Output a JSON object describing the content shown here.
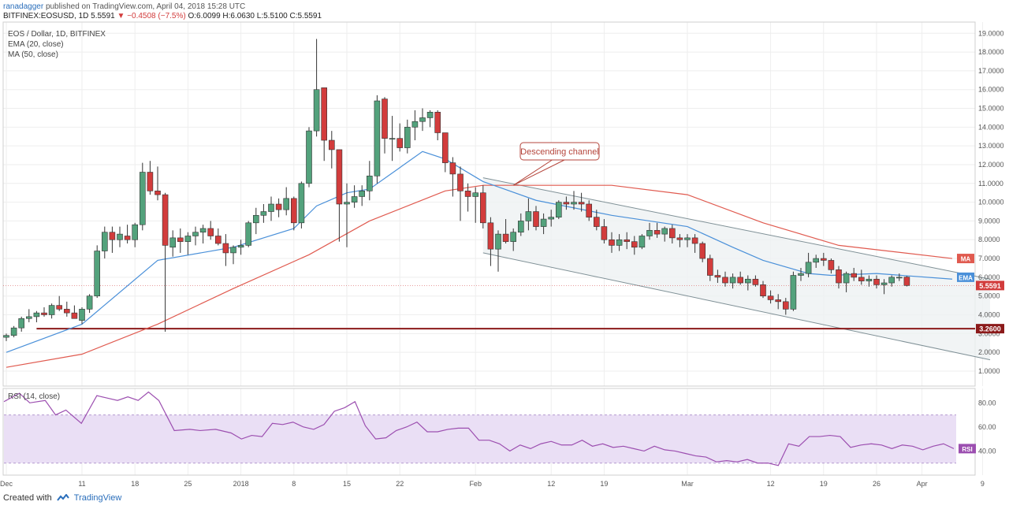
{
  "header": {
    "user": "ranadagger",
    "published_text": "published on TradingView.com, April 04, 2018 15:28 UTC",
    "symbol": "BITFINEX:EOSUSD, 1D",
    "last": "5.5591",
    "change": "▼ −0.4508 (−7.5%)",
    "ohlc": "O:6.0099 H:6.0630 L:5.5100 C:5.5591"
  },
  "legend": {
    "title": "EOS / Dollar, 1D, BITFINEX",
    "ema": "EMA (20, close)",
    "ma": "MA (50, close)"
  },
  "rsi_legend": "RSI (14, close)",
  "annotation": "Descending channel",
  "footer": {
    "created_with": "Created with",
    "brand": "TradingView"
  },
  "colors": {
    "up": "#53a27c",
    "down": "#d23c3c",
    "ema": "#4a90d9",
    "ma": "#e05a4f",
    "support": "#8b1a1a",
    "rsi": "#9c4fb0",
    "rsi_band": "#eadff5"
  },
  "chart_data": {
    "type": "candlestick",
    "price_axis": [
      "19.0000",
      "18.0000",
      "17.0000",
      "16.0000",
      "15.0000",
      "14.0000",
      "13.0000",
      "12.0000",
      "11.0000",
      "10.0000",
      "9.0000",
      "8.0000",
      "7.0000",
      "6.0000",
      "5.0000",
      "4.0000",
      "3.0000",
      "2.0000",
      "1.0000"
    ],
    "price_ticks": [
      19,
      18,
      17,
      16,
      15,
      14,
      13,
      12,
      11,
      10,
      9,
      8,
      7,
      6,
      5,
      4,
      3,
      2,
      1
    ],
    "ylim": [
      0.2,
      19.6
    ],
    "x_labels": [
      {
        "label": "Dec",
        "idx": 0
      },
      {
        "label": "11",
        "idx": 10
      },
      {
        "label": "18",
        "idx": 17
      },
      {
        "label": "25",
        "idx": 24
      },
      {
        "label": "2018",
        "idx": 31
      },
      {
        "label": "8",
        "idx": 38
      },
      {
        "label": "15",
        "idx": 45
      },
      {
        "label": "22",
        "idx": 52
      },
      {
        "label": "Feb",
        "idx": 62
      },
      {
        "label": "12",
        "idx": 72
      },
      {
        "label": "19",
        "idx": 79
      },
      {
        "label": "Mar",
        "idx": 90
      },
      {
        "label": "12",
        "idx": 101
      },
      {
        "label": "19",
        "idx": 108
      },
      {
        "label": "26",
        "idx": 115
      },
      {
        "label": "Apr",
        "idx": 121
      },
      {
        "label": "9",
        "idx": 129
      }
    ],
    "x_count": 136,
    "candles": [
      [
        2.8,
        3.0,
        2.6,
        2.9
      ],
      [
        2.9,
        3.4,
        2.8,
        3.3
      ],
      [
        3.3,
        3.9,
        3.1,
        3.8
      ],
      [
        3.8,
        4.3,
        3.6,
        3.9
      ],
      [
        3.9,
        4.2,
        3.6,
        4.1
      ],
      [
        4.1,
        4.4,
        3.9,
        4.0
      ],
      [
        4.0,
        4.6,
        3.8,
        4.5
      ],
      [
        4.5,
        5.0,
        4.2,
        4.3
      ],
      [
        4.3,
        4.7,
        3.9,
        4.1
      ],
      [
        4.1,
        4.5,
        3.8,
        3.8
      ],
      [
        3.7,
        4.4,
        3.5,
        4.3
      ],
      [
        4.3,
        5.1,
        4.1,
        5.0
      ],
      [
        5.0,
        7.7,
        4.9,
        7.4
      ],
      [
        7.4,
        8.7,
        7.0,
        8.4
      ],
      [
        8.4,
        8.7,
        7.3,
        8.0
      ],
      [
        8.0,
        8.7,
        7.6,
        8.3
      ],
      [
        8.2,
        8.8,
        7.8,
        8.0
      ],
      [
        8.0,
        8.9,
        7.6,
        8.8
      ],
      [
        8.8,
        12.1,
        8.5,
        11.6
      ],
      [
        11.6,
        12.2,
        10.4,
        10.6
      ],
      [
        10.6,
        11.9,
        10.1,
        10.4
      ],
      [
        10.4,
        10.5,
        3.1,
        7.7
      ],
      [
        7.6,
        8.5,
        7.1,
        8.1
      ],
      [
        8.1,
        8.6,
        7.3,
        7.9
      ],
      [
        7.9,
        8.4,
        7.2,
        8.2
      ],
      [
        8.2,
        8.7,
        7.7,
        8.4
      ],
      [
        8.4,
        8.8,
        7.8,
        8.6
      ],
      [
        8.6,
        9.0,
        8.0,
        8.2
      ],
      [
        8.2,
        8.6,
        7.7,
        7.8
      ],
      [
        7.8,
        8.3,
        6.6,
        7.3
      ],
      [
        7.3,
        7.7,
        6.7,
        7.6
      ],
      [
        7.6,
        8.0,
        7.2,
        7.7
      ],
      [
        7.7,
        9.0,
        7.6,
        8.9
      ],
      [
        8.9,
        9.7,
        8.3,
        9.3
      ],
      [
        9.3,
        9.9,
        8.9,
        9.5
      ],
      [
        9.5,
        10.3,
        9.0,
        9.9
      ],
      [
        9.9,
        10.2,
        9.2,
        9.6
      ],
      [
        9.6,
        10.8,
        9.3,
        10.2
      ],
      [
        10.2,
        10.3,
        8.5,
        8.9
      ],
      [
        8.9,
        11.1,
        8.6,
        11.0
      ],
      [
        11.0,
        14.0,
        10.8,
        13.8
      ],
      [
        13.8,
        18.7,
        13.5,
        16.0
      ],
      [
        16.1,
        16.1,
        12.2,
        13.3
      ],
      [
        13.3,
        13.8,
        11.8,
        12.8
      ],
      [
        12.8,
        12.8,
        7.9,
        9.9
      ],
      [
        9.9,
        11.0,
        7.6,
        10.0
      ],
      [
        10.0,
        10.9,
        9.7,
        10.3
      ],
      [
        10.3,
        10.9,
        9.8,
        10.6
      ],
      [
        10.6,
        12.2,
        10.1,
        11.4
      ],
      [
        11.4,
        15.7,
        11.0,
        15.4
      ],
      [
        15.5,
        15.6,
        12.6,
        13.4
      ],
      [
        13.4,
        14.6,
        12.2,
        13.4
      ],
      [
        13.4,
        14.2,
        12.7,
        12.9
      ],
      [
        12.9,
        14.4,
        12.6,
        14.0
      ],
      [
        14.0,
        14.9,
        13.3,
        14.3
      ],
      [
        14.3,
        15.0,
        13.8,
        14.5
      ],
      [
        14.5,
        14.9,
        14.0,
        14.8
      ],
      [
        14.8,
        14.9,
        13.3,
        13.7
      ],
      [
        13.7,
        13.7,
        11.6,
        12.1
      ],
      [
        12.1,
        12.4,
        10.3,
        11.5
      ],
      [
        11.5,
        11.9,
        9.0,
        10.6
      ],
      [
        10.6,
        11.0,
        9.5,
        10.3
      ],
      [
        10.3,
        10.8,
        8.9,
        10.5
      ],
      [
        10.5,
        10.9,
        8.6,
        8.9
      ],
      [
        8.9,
        9.2,
        6.6,
        7.5
      ],
      [
        7.5,
        8.5,
        6.3,
        8.3
      ],
      [
        8.3,
        9.1,
        7.8,
        7.9
      ],
      [
        7.9,
        8.6,
        7.4,
        8.4
      ],
      [
        8.4,
        9.4,
        8.2,
        9.0
      ],
      [
        9.0,
        10.2,
        8.5,
        9.5
      ],
      [
        9.5,
        9.8,
        8.5,
        8.7
      ],
      [
        8.7,
        9.4,
        8.3,
        9.1
      ],
      [
        9.1,
        9.6,
        8.7,
        9.2
      ],
      [
        9.2,
        10.1,
        9.1,
        10.0
      ],
      [
        10.0,
        10.3,
        9.6,
        9.9
      ],
      [
        9.9,
        10.6,
        9.6,
        10.0
      ],
      [
        10.0,
        10.5,
        9.5,
        9.9
      ],
      [
        9.9,
        10.1,
        9.0,
        9.2
      ],
      [
        9.2,
        9.6,
        8.5,
        8.7
      ],
      [
        8.7,
        9.1,
        7.8,
        8.0
      ],
      [
        8.0,
        8.4,
        7.3,
        7.7
      ],
      [
        7.7,
        8.3,
        7.4,
        8.0
      ],
      [
        8.0,
        8.4,
        7.5,
        7.9
      ],
      [
        7.9,
        8.2,
        7.2,
        7.6
      ],
      [
        7.6,
        8.3,
        7.5,
        8.2
      ],
      [
        8.2,
        8.9,
        8.0,
        8.5
      ],
      [
        8.5,
        8.9,
        8.1,
        8.3
      ],
      [
        8.3,
        8.7,
        7.9,
        8.6
      ],
      [
        8.6,
        8.8,
        7.8,
        8.1
      ],
      [
        8.1,
        8.3,
        7.6,
        8.0
      ],
      [
        8.0,
        8.3,
        7.6,
        8.1
      ],
      [
        8.1,
        8.3,
        7.3,
        7.8
      ],
      [
        7.8,
        7.9,
        6.8,
        7.0
      ],
      [
        7.0,
        7.2,
        5.8,
        6.1
      ],
      [
        6.1,
        6.4,
        5.7,
        6.0
      ],
      [
        6.0,
        6.3,
        5.5,
        5.7
      ],
      [
        5.7,
        6.2,
        5.4,
        6.0
      ],
      [
        6.0,
        6.3,
        5.6,
        5.7
      ],
      [
        5.7,
        6.1,
        5.3,
        5.9
      ],
      [
        5.9,
        6.1,
        5.5,
        5.6
      ],
      [
        5.6,
        5.8,
        4.9,
        5.0
      ],
      [
        5.0,
        5.3,
        4.6,
        4.8
      ],
      [
        4.8,
        5.1,
        4.3,
        4.7
      ],
      [
        4.7,
        4.9,
        4.0,
        4.3
      ],
      [
        4.3,
        6.3,
        4.2,
        6.1
      ],
      [
        6.1,
        6.5,
        5.8,
        6.2
      ],
      [
        6.2,
        7.3,
        6.0,
        6.8
      ],
      [
        6.8,
        7.2,
        6.5,
        7.0
      ],
      [
        7.0,
        7.3,
        6.6,
        6.9
      ],
      [
        6.9,
        7.0,
        6.2,
        6.4
      ],
      [
        6.4,
        6.6,
        5.4,
        5.7
      ],
      [
        5.7,
        6.3,
        5.2,
        6.2
      ],
      [
        6.2,
        6.5,
        5.8,
        6.0
      ],
      [
        6.0,
        6.4,
        5.6,
        5.8
      ],
      [
        5.8,
        6.1,
        5.5,
        5.9
      ],
      [
        5.9,
        6.1,
        5.4,
        5.6
      ],
      [
        5.6,
        5.9,
        5.1,
        5.7
      ],
      [
        5.7,
        6.1,
        5.5,
        6.0
      ],
      [
        6.0,
        6.2,
        5.8,
        6.0
      ],
      [
        6.01,
        6.063,
        5.51,
        5.5591
      ]
    ],
    "ema20": [
      [
        0,
        2.0
      ],
      [
        10,
        3.5
      ],
      [
        20,
        6.9
      ],
      [
        30,
        7.6
      ],
      [
        38,
        8.6
      ],
      [
        41,
        9.8
      ],
      [
        45,
        10.5
      ],
      [
        48,
        10.7
      ],
      [
        55,
        12.7
      ],
      [
        58,
        12.3
      ],
      [
        63,
        11.1
      ],
      [
        70,
        10.1
      ],
      [
        80,
        9.3
      ],
      [
        90,
        8.7
      ],
      [
        96,
        7.6
      ],
      [
        100,
        6.9
      ],
      [
        106,
        6.2
      ],
      [
        109,
        6.1
      ],
      [
        115,
        6.2
      ],
      [
        125,
        5.9
      ]
    ],
    "ma50": [
      [
        0,
        1.2
      ],
      [
        10,
        1.9
      ],
      [
        20,
        3.5
      ],
      [
        30,
        5.4
      ],
      [
        40,
        7.2
      ],
      [
        48,
        9.0
      ],
      [
        58,
        10.6
      ],
      [
        63,
        10.9
      ],
      [
        80,
        10.9
      ],
      [
        90,
        10.4
      ],
      [
        100,
        8.9
      ],
      [
        110,
        7.7
      ],
      [
        125,
        7.0
      ]
    ],
    "channel_upper": [
      [
        63,
        11.3
      ],
      [
        130,
        5.9
      ]
    ],
    "channel_lower": [
      [
        63,
        7.3
      ],
      [
        130,
        1.6
      ]
    ],
    "support": 3.26,
    "support_label": "3.2600",
    "ema_label": "EMA",
    "ma_label": "MA",
    "last_label": "5.5591",
    "rsi_axis": [
      "80.00",
      "60.00",
      "40.00"
    ],
    "rsi_ticks": [
      80,
      60,
      40
    ],
    "rsi_band": [
      30,
      70
    ],
    "rsi_label": "RSI",
    "rsi": [
      [
        0,
        81
      ],
      [
        3,
        88
      ],
      [
        5,
        80
      ],
      [
        8,
        82
      ],
      [
        10,
        70
      ],
      [
        12,
        74
      ],
      [
        15,
        63
      ],
      [
        18,
        86
      ],
      [
        20,
        84
      ],
      [
        22,
        82
      ],
      [
        24,
        85
      ],
      [
        26,
        82
      ],
      [
        28,
        89
      ],
      [
        30,
        82
      ],
      [
        33,
        57
      ],
      [
        36,
        58
      ],
      [
        38,
        57
      ],
      [
        41,
        58
      ],
      [
        44,
        55
      ],
      [
        46,
        50
      ],
      [
        48,
        53
      ],
      [
        50,
        52
      ],
      [
        52,
        63
      ],
      [
        54,
        62
      ],
      [
        56,
        64
      ],
      [
        58,
        60
      ],
      [
        60,
        58
      ],
      [
        62,
        62
      ],
      [
        64,
        73
      ],
      [
        66,
        76
      ],
      [
        68,
        81
      ],
      [
        70,
        61
      ],
      [
        72,
        50
      ],
      [
        74,
        51
      ],
      [
        76,
        57
      ],
      [
        78,
        60
      ],
      [
        80,
        64
      ],
      [
        82,
        56
      ],
      [
        84,
        56
      ],
      [
        86,
        58
      ],
      [
        88,
        59
      ],
      [
        90,
        59
      ],
      [
        92,
        49
      ],
      [
        94,
        49
      ],
      [
        96,
        46
      ],
      [
        98,
        40
      ],
      [
        100,
        45
      ],
      [
        102,
        42
      ],
      [
        104,
        46
      ],
      [
        106,
        48
      ],
      [
        108,
        45
      ],
      [
        110,
        45
      ],
      [
        112,
        49
      ],
      [
        114,
        44
      ],
      [
        116,
        46
      ],
      [
        118,
        43
      ],
      [
        120,
        44
      ],
      [
        122,
        42
      ],
      [
        124,
        40
      ],
      [
        126,
        44
      ],
      [
        128,
        41
      ],
      [
        130,
        40
      ],
      [
        132,
        38
      ],
      [
        134,
        36
      ],
      [
        136,
        35
      ],
      [
        138,
        31
      ],
      [
        140,
        32
      ],
      [
        142,
        31
      ],
      [
        144,
        33
      ],
      [
        146,
        30
      ],
      [
        148,
        30
      ],
      [
        150,
        28
      ],
      [
        152,
        46
      ],
      [
        154,
        44
      ],
      [
        156,
        52
      ],
      [
        158,
        52
      ],
      [
        160,
        53
      ],
      [
        162,
        52
      ],
      [
        164,
        43
      ],
      [
        166,
        45
      ],
      [
        168,
        46
      ],
      [
        170,
        45
      ],
      [
        172,
        42
      ],
      [
        174,
        45
      ],
      [
        176,
        44
      ],
      [
        178,
        41
      ],
      [
        180,
        44
      ],
      [
        182,
        46
      ],
      [
        184,
        42
      ]
    ],
    "rsi_xmax": 184
  }
}
